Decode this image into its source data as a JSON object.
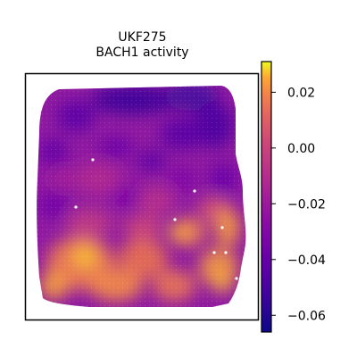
{
  "chart_data": {
    "type": "heatmap",
    "title_lines": [
      "UKF275",
      "BACH1 activity"
    ],
    "xlabel": "",
    "ylabel": "",
    "grid": false,
    "axes_ticks": false,
    "colormap": "plasma",
    "colorbar": {
      "range": [
        -0.066,
        0.031
      ],
      "ticks": [
        0.02,
        0.0,
        -0.02,
        -0.04,
        -0.06
      ],
      "tick_labels": [
        "0.02",
        "0.00",
        "−0.02",
        "−0.04",
        "−0.06"
      ],
      "placement": "right"
    },
    "spatial_pattern": {
      "description_values": "spot-level activity; highest (~0.02) in bottom-left and lower-right regions, lowest (~-0.06) in upper area",
      "high_regions": [
        {
          "region": "bottom-left",
          "value": 0.02
        },
        {
          "region": "lower-center",
          "value": 0.01
        },
        {
          "region": "right-middle",
          "value": 0.015
        }
      ],
      "low_regions": [
        {
          "region": "top-center",
          "value": -0.06
        },
        {
          "region": "top-right",
          "value": -0.055
        },
        {
          "region": "upper-left",
          "value": -0.05
        }
      ]
    }
  }
}
